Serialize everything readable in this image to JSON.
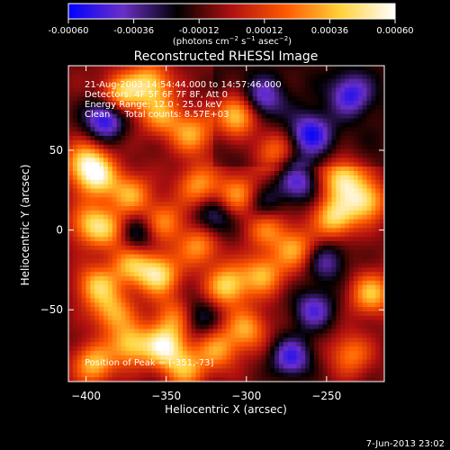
{
  "colorbar": {
    "ticks": [
      "-0.00060",
      "-0.00036",
      "-0.00012",
      "0.00012",
      "0.00036",
      "0.00060"
    ],
    "range": [
      -0.0006,
      0.0006
    ],
    "colormap": [
      "#0000ff",
      "#6a2fc8",
      "#000000",
      "#b01010",
      "#ff5a00",
      "#ffd23a",
      "#ffffff"
    ],
    "unit_base": "(photons cm",
    "unit_exp1": "−2",
    "unit_mid": " s",
    "unit_exp2": "−1",
    "unit_end": " asec",
    "unit_exp3": "−2",
    "unit_close": ")"
  },
  "chart_data": {
    "type": "heatmap",
    "title": "Reconstructed RHESSI Image",
    "xlabel": "Heliocentric X (arcsec)",
    "ylabel": "Heliocentric Y (arcsec)",
    "xlim": [
      -411,
      -214
    ],
    "ylim": [
      -95,
      103
    ],
    "xticks": [
      -400,
      -350,
      -300,
      -250
    ],
    "yticks": [
      -50,
      0,
      50
    ],
    "xtick_labels": [
      "−400",
      "−350",
      "−300",
      "−250"
    ],
    "ytick_labels": [
      "−50",
      "0",
      "50"
    ],
    "peak_x": -351,
    "peak_y": -73,
    "hotspots": [
      {
        "x": -400,
        "y": 42,
        "v": 0.55
      },
      {
        "x": -378,
        "y": 85,
        "v": 0.52
      },
      {
        "x": -360,
        "y": 92,
        "v": 0.5
      },
      {
        "x": -353,
        "y": 72,
        "v": 0.4
      },
      {
        "x": -334,
        "y": 60,
        "v": 0.42
      },
      {
        "x": -306,
        "y": 72,
        "v": 0.62
      },
      {
        "x": -392,
        "y": 32,
        "v": 0.48
      },
      {
        "x": -372,
        "y": 22,
        "v": 0.42
      },
      {
        "x": -398,
        "y": 4,
        "v": 0.42
      },
      {
        "x": -385,
        "y": 0,
        "v": 0.35
      },
      {
        "x": -352,
        "y": 5,
        "v": 0.38
      },
      {
        "x": -330,
        "y": 28,
        "v": 0.4
      },
      {
        "x": -305,
        "y": 22,
        "v": 0.42
      },
      {
        "x": -355,
        "y": -28,
        "v": 0.58
      },
      {
        "x": -372,
        "y": -22,
        "v": 0.42
      },
      {
        "x": -312,
        "y": -35,
        "v": 0.55
      },
      {
        "x": -330,
        "y": -10,
        "v": 0.4
      },
      {
        "x": -393,
        "y": -35,
        "v": 0.48
      },
      {
        "x": -383,
        "y": -52,
        "v": 0.42
      },
      {
        "x": -290,
        "y": -28,
        "v": 0.45
      },
      {
        "x": -288,
        "y": 2,
        "v": 0.38
      },
      {
        "x": -270,
        "y": -12,
        "v": 0.42
      },
      {
        "x": -245,
        "y": 8,
        "v": 0.55
      },
      {
        "x": -226,
        "y": 18,
        "v": 0.55
      },
      {
        "x": -240,
        "y": 32,
        "v": 0.58
      },
      {
        "x": -222,
        "y": -40,
        "v": 0.48
      },
      {
        "x": -235,
        "y": -78,
        "v": 0.35
      },
      {
        "x": -300,
        "y": -62,
        "v": 0.42
      },
      {
        "x": -318,
        "y": -75,
        "v": 0.4
      },
      {
        "x": -351,
        "y": -73,
        "v": 0.62
      },
      {
        "x": -372,
        "y": -72,
        "v": 0.5
      },
      {
        "x": -395,
        "y": -84,
        "v": 0.48
      },
      {
        "x": -338,
        "y": -87,
        "v": 0.42
      },
      {
        "x": -345,
        "y": -55,
        "v": 0.35
      },
      {
        "x": -283,
        "y": 50,
        "v": 0.38
      }
    ],
    "coldspots": [
      {
        "x": -388,
        "y": 70,
        "v": -0.55
      },
      {
        "x": -268,
        "y": 30,
        "v": -0.4
      },
      {
        "x": -260,
        "y": 60,
        "v": -0.45
      },
      {
        "x": -290,
        "y": 82,
        "v": -0.35
      },
      {
        "x": -235,
        "y": 85,
        "v": -0.4
      },
      {
        "x": -258,
        "y": -50,
        "v": -0.4
      },
      {
        "x": -272,
        "y": -80,
        "v": -0.45
      },
      {
        "x": -320,
        "y": 8,
        "v": -0.3
      },
      {
        "x": -368,
        "y": -2,
        "v": -0.3
      },
      {
        "x": -330,
        "y": -55,
        "v": -0.25
      },
      {
        "x": -250,
        "y": -20,
        "v": -0.32
      },
      {
        "x": -290,
        "y": 15,
        "v": -0.28
      }
    ]
  },
  "annotations": {
    "time_range": "21-Aug-2003 14:54:44.000 to 14:57:46.000",
    "detectors": "Detectors: 4F 5F 6F 7F 8F, Att 0",
    "energy": "Energy Range: 12.0 - 25.0 keV",
    "clean": "Clean     Total counts: 8.57E+03",
    "peak": "Position of Peak = [-351,-73]"
  },
  "footer": {
    "date": "7-Jun-2013 23:02"
  }
}
